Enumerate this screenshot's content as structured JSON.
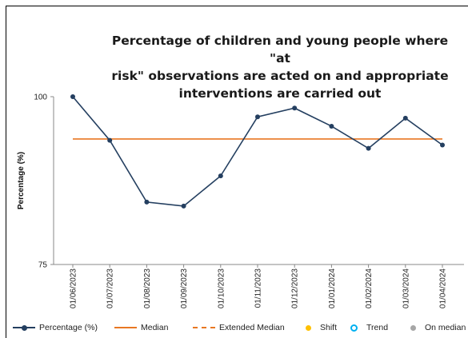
{
  "chart_data": {
    "type": "line",
    "title": "Percentage of children and young people where \"at\nrisk\" observations are acted on and appropriate\ninterventions are carried out",
    "ylabel": "Percentage (%)",
    "xlabel": "",
    "ylim": [
      75,
      100
    ],
    "yticks": [
      "75",
      "100"
    ],
    "categories": [
      "01/06/2023",
      "01/07/2023",
      "01/08/2023",
      "01/09/2023",
      "01/10/2023",
      "01/11/2023",
      "01/12/2023",
      "01/01/2024",
      "01/02/2024",
      "01/03/2024",
      "01/04/2024"
    ],
    "series": [
      {
        "name": "Percentage (%)",
        "color": "#243f60",
        "values": [
          100,
          93.5,
          84.3,
          83.7,
          88.2,
          97.0,
          98.3,
          95.6,
          92.3,
          96.8,
          92.8
        ]
      },
      {
        "name": "Median",
        "color": "#e87722",
        "values": [
          93.7,
          93.7,
          93.7,
          93.7,
          93.7,
          93.7,
          93.7,
          93.7,
          93.7,
          93.7,
          93.7
        ]
      }
    ],
    "legend": [
      {
        "label": "Percentage (%)",
        "symbol": "line-dot",
        "color": "#243f60"
      },
      {
        "label": "Median",
        "symbol": "line",
        "color": "#e87722"
      },
      {
        "label": "Extended Median",
        "symbol": "dashed",
        "color": "#e87722"
      },
      {
        "label": "Shift",
        "symbol": "dot",
        "color": "#ffc000"
      },
      {
        "label": "Trend",
        "symbol": "ring",
        "color": "#00b0f0"
      },
      {
        "label": "On median",
        "symbol": "dot",
        "color": "#a6a6a6"
      }
    ],
    "legend_position": "bottom",
    "grid": false
  }
}
